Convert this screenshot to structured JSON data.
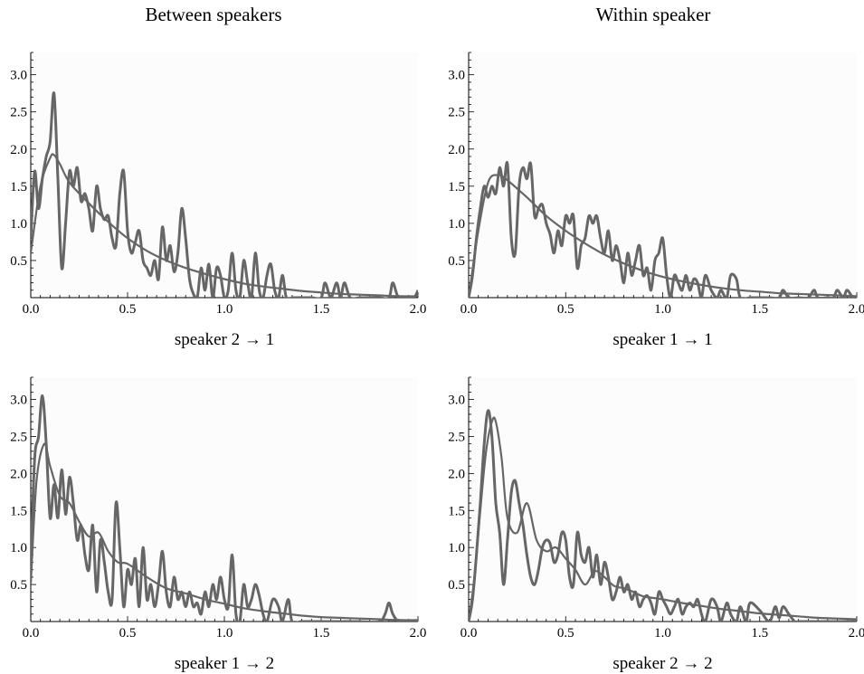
{
  "column_titles": {
    "left": "Between speakers",
    "right": "Within speaker"
  },
  "chart_data": [
    {
      "type": "line",
      "xlabel": "speaker 2 → 1",
      "xlim": [
        0,
        2.0
      ],
      "ylim": [
        0,
        3.3
      ],
      "xticks": [
        0.0,
        0.5,
        1.0,
        1.5,
        2.0
      ],
      "yticks": [
        0.5,
        1.0,
        1.5,
        2.0,
        2.5,
        3.0
      ],
      "grid": false,
      "series": [
        {
          "kind": "empirical",
          "color": "#666666",
          "x": [
            0,
            0.02,
            0.04,
            0.06,
            0.08,
            0.1,
            0.12,
            0.14,
            0.16,
            0.18,
            0.2,
            0.22,
            0.24,
            0.26,
            0.28,
            0.3,
            0.32,
            0.34,
            0.36,
            0.38,
            0.4,
            0.42,
            0.44,
            0.46,
            0.48,
            0.5,
            0.52,
            0.54,
            0.56,
            0.58,
            0.6,
            0.62,
            0.64,
            0.66,
            0.68,
            0.7,
            0.72,
            0.74,
            0.76,
            0.78,
            0.8,
            0.82,
            0.84,
            0.86,
            0.88,
            0.9,
            0.92,
            0.94,
            0.96,
            0.98,
            1.0,
            1.02,
            1.04,
            1.06,
            1.08,
            1.1,
            1.12,
            1.14,
            1.16,
            1.18,
            1.2,
            1.22,
            1.24,
            1.26,
            1.28,
            1.3,
            1.32,
            1.35,
            1.4,
            1.45,
            1.5,
            1.52,
            1.55,
            1.58,
            1.6,
            1.62,
            1.65,
            1.7,
            1.75,
            1.8,
            1.85,
            1.87,
            1.9,
            1.95,
            1.98,
            2.0
          ],
          "y": [
            0.8,
            1.7,
            1.2,
            1.6,
            1.9,
            2.1,
            2.75,
            1.6,
            0.4,
            1.0,
            1.7,
            1.5,
            1.75,
            1.3,
            1.4,
            1.2,
            0.9,
            1.5,
            1.2,
            1.05,
            1.1,
            0.8,
            0.7,
            1.4,
            1.7,
            0.9,
            0.6,
            0.75,
            0.9,
            0.5,
            0.4,
            0.3,
            0.5,
            0.25,
            0.95,
            0.5,
            0.7,
            0.35,
            0.6,
            1.2,
            0.8,
            0.25,
            0.05,
            0.0,
            0.4,
            0.1,
            0.45,
            0.0,
            0.4,
            0.3,
            0.0,
            0.1,
            0.6,
            0.1,
            0.0,
            0.5,
            0.2,
            0.0,
            0.6,
            0.1,
            0.0,
            0.3,
            0.45,
            0.1,
            0.0,
            0.3,
            0.0,
            0.0,
            0.0,
            0.0,
            0.0,
            0.2,
            0.0,
            0.2,
            0.0,
            0.2,
            0.0,
            0.0,
            0.0,
            0.0,
            0.0,
            0.2,
            0.0,
            0.0,
            0.0,
            0.1
          ]
        },
        {
          "kind": "fit",
          "color": "#666666",
          "x": [
            0,
            0.05,
            0.1,
            0.12,
            0.15,
            0.2,
            0.3,
            0.4,
            0.5,
            0.6,
            0.7,
            0.8,
            0.9,
            1.0,
            1.1,
            1.2,
            1.3,
            1.4,
            1.5,
            1.6,
            1.7,
            1.8,
            1.9,
            2.0
          ],
          "y": [
            0.6,
            1.5,
            1.88,
            1.92,
            1.8,
            1.55,
            1.27,
            1.02,
            0.8,
            0.63,
            0.5,
            0.4,
            0.32,
            0.25,
            0.19,
            0.15,
            0.12,
            0.09,
            0.07,
            0.05,
            0.04,
            0.03,
            0.02,
            0.02
          ]
        }
      ]
    },
    {
      "type": "line",
      "xlabel": "speaker 1 → 1",
      "xlim": [
        0,
        2.0
      ],
      "ylim": [
        0,
        3.3
      ],
      "xticks": [
        0.0,
        0.5,
        1.0,
        1.5,
        2.0
      ],
      "yticks": [
        0.5,
        1.0,
        1.5,
        2.0,
        2.5,
        3.0
      ],
      "grid": false,
      "series": [
        {
          "kind": "empirical",
          "color": "#666666",
          "x": [
            0,
            0.02,
            0.04,
            0.06,
            0.08,
            0.1,
            0.12,
            0.14,
            0.16,
            0.18,
            0.2,
            0.22,
            0.24,
            0.26,
            0.28,
            0.3,
            0.32,
            0.34,
            0.36,
            0.38,
            0.4,
            0.42,
            0.44,
            0.46,
            0.48,
            0.5,
            0.52,
            0.54,
            0.56,
            0.58,
            0.6,
            0.62,
            0.64,
            0.66,
            0.68,
            0.7,
            0.72,
            0.74,
            0.76,
            0.78,
            0.8,
            0.82,
            0.84,
            0.86,
            0.88,
            0.9,
            0.92,
            0.94,
            0.96,
            0.98,
            1.0,
            1.02,
            1.04,
            1.06,
            1.08,
            1.1,
            1.12,
            1.14,
            1.16,
            1.18,
            1.2,
            1.22,
            1.25,
            1.28,
            1.3,
            1.33,
            1.35,
            1.38,
            1.4,
            1.45,
            1.5,
            1.55,
            1.6,
            1.62,
            1.65,
            1.7,
            1.75,
            1.78,
            1.8,
            1.85,
            1.88,
            1.9,
            1.93,
            1.95,
            1.98,
            2.0
          ],
          "y": [
            0.0,
            0.3,
            0.8,
            1.2,
            1.5,
            1.35,
            1.5,
            1.4,
            1.75,
            1.5,
            1.8,
            0.8,
            0.6,
            1.5,
            1.75,
            1.6,
            1.8,
            1.1,
            1.2,
            1.25,
            1.0,
            0.85,
            0.6,
            0.9,
            0.7,
            1.1,
            1.0,
            1.1,
            0.4,
            0.7,
            0.8,
            1.1,
            1.0,
            1.1,
            0.8,
            0.6,
            0.9,
            0.5,
            0.7,
            0.5,
            0.2,
            0.6,
            0.3,
            0.5,
            0.7,
            0.3,
            0.4,
            0.1,
            0.5,
            0.6,
            0.8,
            0.3,
            0.0,
            0.3,
            0.2,
            0.1,
            0.3,
            0.1,
            0.25,
            0.2,
            0.0,
            0.3,
            0.1,
            0.0,
            0.1,
            0.0,
            0.3,
            0.25,
            0.0,
            0.0,
            0.0,
            0.0,
            0.0,
            0.1,
            0.0,
            0.0,
            0.0,
            0.1,
            0.0,
            0.0,
            0.0,
            0.1,
            0.0,
            0.1,
            0.0,
            0.0
          ]
        },
        {
          "kind": "fit",
          "color": "#666666",
          "x": [
            0,
            0.05,
            0.1,
            0.15,
            0.2,
            0.3,
            0.4,
            0.5,
            0.6,
            0.7,
            0.8,
            0.9,
            1.0,
            1.1,
            1.2,
            1.3,
            1.4,
            1.5,
            1.6,
            1.7,
            1.8,
            1.9,
            2.0
          ],
          "y": [
            0.0,
            0.9,
            1.55,
            1.65,
            1.58,
            1.35,
            1.1,
            0.9,
            0.73,
            0.58,
            0.46,
            0.36,
            0.28,
            0.22,
            0.17,
            0.13,
            0.1,
            0.08,
            0.06,
            0.05,
            0.04,
            0.03,
            0.02
          ]
        }
      ]
    },
    {
      "type": "line",
      "xlabel": "speaker 1 → 2",
      "xlim": [
        0,
        2.0
      ],
      "ylim": [
        0,
        3.3
      ],
      "xticks": [
        0.0,
        0.5,
        1.0,
        1.5,
        2.0
      ],
      "yticks": [
        0.5,
        1.0,
        1.5,
        2.0,
        2.5,
        3.0
      ],
      "grid": false,
      "series": [
        {
          "kind": "empirical",
          "color": "#666666",
          "x": [
            0,
            0.02,
            0.04,
            0.06,
            0.08,
            0.1,
            0.12,
            0.14,
            0.16,
            0.18,
            0.2,
            0.22,
            0.24,
            0.26,
            0.28,
            0.3,
            0.32,
            0.34,
            0.36,
            0.38,
            0.4,
            0.42,
            0.44,
            0.46,
            0.48,
            0.5,
            0.52,
            0.54,
            0.56,
            0.58,
            0.6,
            0.62,
            0.64,
            0.66,
            0.68,
            0.7,
            0.72,
            0.74,
            0.76,
            0.78,
            0.8,
            0.82,
            0.84,
            0.86,
            0.88,
            0.9,
            0.92,
            0.94,
            0.96,
            0.98,
            1.0,
            1.02,
            1.04,
            1.06,
            1.08,
            1.1,
            1.12,
            1.14,
            1.16,
            1.18,
            1.2,
            1.22,
            1.25,
            1.28,
            1.3,
            1.33,
            1.35,
            1.4,
            1.5,
            1.6,
            1.7,
            1.8,
            1.83,
            1.85,
            1.87,
            1.9,
            1.95,
            2.0
          ],
          "y": [
            0.8,
            2.2,
            2.5,
            3.05,
            2.4,
            1.4,
            1.85,
            1.4,
            2.05,
            1.45,
            1.95,
            1.6,
            1.1,
            1.3,
            0.9,
            0.7,
            1.3,
            0.4,
            1.1,
            0.8,
            0.4,
            0.3,
            1.6,
            1.0,
            0.2,
            0.7,
            0.5,
            0.85,
            0.2,
            1.0,
            0.3,
            0.5,
            0.2,
            0.5,
            0.95,
            0.4,
            0.2,
            0.6,
            0.3,
            0.4,
            0.2,
            0.4,
            0.2,
            0.25,
            0.1,
            0.4,
            0.2,
            0.5,
            0.3,
            0.6,
            0.3,
            0.2,
            0.9,
            0.1,
            0.0,
            0.5,
            0.2,
            0.3,
            0.5,
            0.35,
            0.1,
            0.0,
            0.3,
            0.2,
            0.0,
            0.3,
            0.0,
            0.0,
            0.0,
            0.0,
            0.0,
            0.0,
            0.1,
            0.25,
            0.1,
            0.0,
            0.0,
            0.0
          ]
        },
        {
          "kind": "fit",
          "color": "#666666",
          "x": [
            0,
            0.03,
            0.07,
            0.1,
            0.15,
            0.2,
            0.25,
            0.3,
            0.35,
            0.4,
            0.45,
            0.5,
            0.6,
            0.7,
            0.8,
            0.9,
            1.0,
            1.1,
            1.2,
            1.3,
            1.4,
            1.5,
            1.6,
            1.7,
            1.8,
            1.9,
            2.0
          ],
          "y": [
            0.5,
            1.9,
            2.4,
            2.1,
            1.7,
            1.6,
            1.35,
            1.15,
            1.2,
            0.95,
            0.8,
            0.78,
            0.6,
            0.45,
            0.38,
            0.3,
            0.24,
            0.18,
            0.14,
            0.11,
            0.08,
            0.06,
            0.05,
            0.04,
            0.03,
            0.02,
            0.02
          ]
        }
      ]
    },
    {
      "type": "line",
      "xlabel": "speaker 2 → 2",
      "xlim": [
        0,
        2.0
      ],
      "ylim": [
        0,
        3.3
      ],
      "xticks": [
        0.0,
        0.5,
        1.0,
        1.5,
        2.0
      ],
      "yticks": [
        0.5,
        1.0,
        1.5,
        2.0,
        2.5,
        3.0
      ],
      "grid": false,
      "series": [
        {
          "kind": "empirical",
          "color": "#666666",
          "x": [
            0,
            0.02,
            0.04,
            0.06,
            0.08,
            0.1,
            0.12,
            0.14,
            0.16,
            0.18,
            0.2,
            0.22,
            0.24,
            0.26,
            0.28,
            0.3,
            0.32,
            0.34,
            0.36,
            0.38,
            0.4,
            0.42,
            0.44,
            0.46,
            0.48,
            0.5,
            0.52,
            0.54,
            0.56,
            0.58,
            0.6,
            0.62,
            0.64,
            0.66,
            0.68,
            0.7,
            0.72,
            0.74,
            0.76,
            0.78,
            0.8,
            0.82,
            0.84,
            0.86,
            0.88,
            0.9,
            0.92,
            0.94,
            0.96,
            0.98,
            1.0,
            1.02,
            1.04,
            1.06,
            1.08,
            1.1,
            1.12,
            1.14,
            1.16,
            1.18,
            1.2,
            1.22,
            1.25,
            1.28,
            1.3,
            1.33,
            1.35,
            1.38,
            1.4,
            1.43,
            1.45,
            1.5,
            1.55,
            1.58,
            1.6,
            1.62,
            1.65,
            1.68,
            1.7,
            1.75,
            1.8,
            1.9,
            2.0
          ],
          "y": [
            0.0,
            0.3,
            0.9,
            1.6,
            2.4,
            2.85,
            2.5,
            1.6,
            1.2,
            0.5,
            1.1,
            1.75,
            1.9,
            1.6,
            1.3,
            0.9,
            0.6,
            0.5,
            0.7,
            1.0,
            1.1,
            1.05,
            0.8,
            0.9,
            1.2,
            1.1,
            0.6,
            0.5,
            1.2,
            0.9,
            0.8,
            1.0,
            0.6,
            0.9,
            0.5,
            0.8,
            0.6,
            0.3,
            0.4,
            0.6,
            0.4,
            0.5,
            0.3,
            0.4,
            0.2,
            0.3,
            0.35,
            0.25,
            0.1,
            0.4,
            0.3,
            0.2,
            0.1,
            0.2,
            0.3,
            0.1,
            0.2,
            0.25,
            0.2,
            0.3,
            0.1,
            0.0,
            0.3,
            0.2,
            0.0,
            0.25,
            0.1,
            0.0,
            0.2,
            0.0,
            0.25,
            0.15,
            0.0,
            0.2,
            0.05,
            0.2,
            0.1,
            0.0,
            0.0,
            0.0,
            0.0,
            0.0,
            0.0
          ]
        },
        {
          "kind": "fit",
          "color": "#666666",
          "x": [
            0,
            0.03,
            0.06,
            0.09,
            0.12,
            0.14,
            0.17,
            0.2,
            0.25,
            0.3,
            0.35,
            0.4,
            0.45,
            0.5,
            0.55,
            0.6,
            0.65,
            0.7,
            0.75,
            0.8,
            0.85,
            0.9,
            1.0,
            1.1,
            1.2,
            1.3,
            1.4,
            1.5,
            1.6,
            1.7,
            1.8,
            1.9,
            2.0
          ],
          "y": [
            0.0,
            0.6,
            1.5,
            2.3,
            2.7,
            2.7,
            2.2,
            1.4,
            1.2,
            1.6,
            1.1,
            0.95,
            1.0,
            0.85,
            0.7,
            0.5,
            0.68,
            0.6,
            0.48,
            0.45,
            0.4,
            0.34,
            0.3,
            0.25,
            0.21,
            0.17,
            0.14,
            0.11,
            0.09,
            0.07,
            0.05,
            0.04,
            0.03
          ]
        }
      ]
    }
  ]
}
